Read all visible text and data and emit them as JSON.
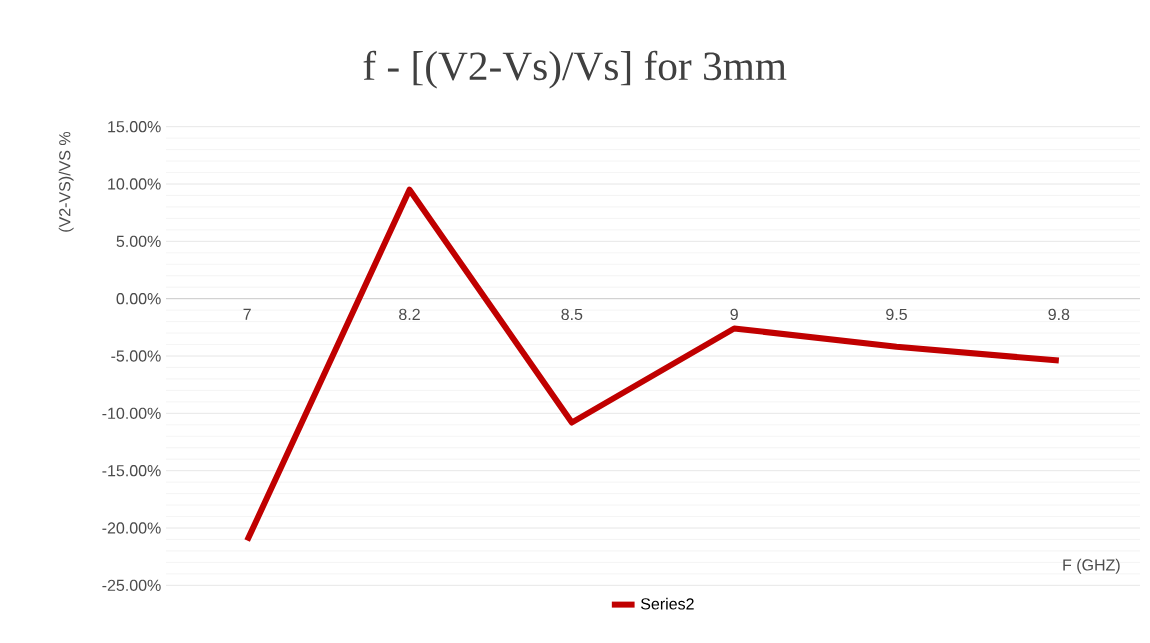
{
  "chart_data": {
    "type": "line",
    "title": "f - [(V2-Vs)/Vs] for 3mm",
    "xlabel": "F (GHZ)",
    "ylabel": "(V2-VS)/VS %",
    "categories": [
      "7",
      "8.2",
      "8.5",
      "9",
      "9.5",
      "9.8"
    ],
    "series": [
      {
        "name": "Series2",
        "color": "#c00000",
        "values": [
          -21.1,
          9.5,
          -10.8,
          -2.6,
          -4.2,
          -5.4
        ]
      }
    ],
    "ylim": [
      -25,
      15
    ],
    "yticks": [
      {
        "value": -25,
        "label": "-25.00%"
      },
      {
        "value": -20,
        "label": "-20.00%"
      },
      {
        "value": -15,
        "label": "-15.00%"
      },
      {
        "value": -10,
        "label": "-10.00%"
      },
      {
        "value": -5,
        "label": "-5.00%"
      },
      {
        "value": 0,
        "label": "0.00%"
      },
      {
        "value": 5,
        "label": "5.00%"
      },
      {
        "value": 10,
        "label": "10.00%"
      },
      {
        "value": 15,
        "label": "15.00%"
      }
    ],
    "grid": "y",
    "legend": "bottom",
    "marker": "none",
    "line_style": "solid"
  }
}
